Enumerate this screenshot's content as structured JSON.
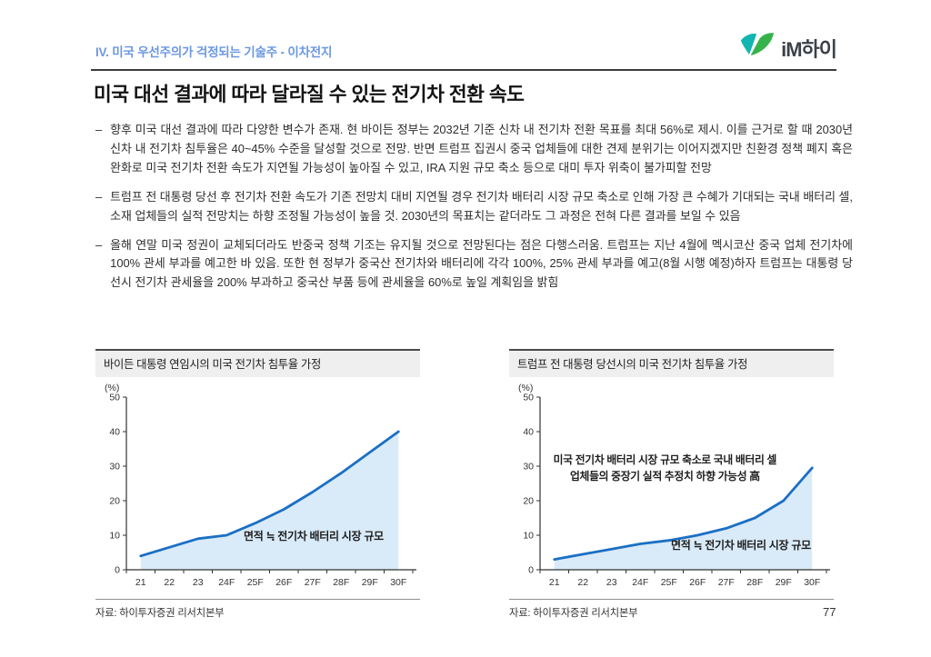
{
  "header": {
    "section_title": "IV. 미국 우선주의가 걱정되는 기술주 - 이차전지",
    "logo_text": "iM하이"
  },
  "page_title": "미국 대선 결과에 따라 달라질 수 있는 전기차 전환 속도",
  "bullets": [
    {
      "dash": "–",
      "text": "향후 미국 대선 결과에 따라 다양한 변수가 존재. 현 바이든 정부는 2032년 기준 신차 내 전기차 전환 목표를 최대 56%로 제시. 이를 근거로 할 때 2030년 신차 내 전기차 침투율은 40~45% 수준을 달성할 것으로 전망. 반면 트럼프 집권시 중국 업체들에 대한 견제 분위기는 이어지겠지만 친환경 정책 폐지 혹은 완화로 미국 전기차 전환 속도가 지연될 가능성이 높아질 수 있고, IRA 지원 규모 축소 등으로 대미 투자 위축이 불가피할 전망"
    },
    {
      "dash": "–",
      "text": "트럼프 전 대통령 당선 후 전기차 전환 속도가 기존 전망치 대비 지연될 경우 전기차 배터리 시장 규모 축소로 인해 가장 큰 수혜가 기대되는 국내 배터리 셀, 소재 업체들의 실적 전망치는 하향 조정될 가능성이 높을 것. 2030년의 목표치는 같더라도 그 과정은 전혀 다른 결과를 보일 수 있음"
    },
    {
      "dash": "–",
      "text": "올해 연말 미국 정권이 교체되더라도 반중국 정책 기조는 유지될 것으로 전망된다는 점은 다행스러움. 트럼프는 지난 4월에 멕시코산 중국 업체 전기차에 100% 관세 부과를 예고한 바 있음. 또한 현 정부가 중국산 전기차와 배터리에 각각 100%, 25% 관세 부과를 예고(8월 시행 예정)하자 트럼프는 대통령 당선시 전기차 관세율을 200% 부과하고 중국산 부품 등에 관세율을 60%로 높일 계획임을 밝힘"
    }
  ],
  "chart_data": [
    {
      "type": "area",
      "title": "바이든 대통령 연임시의 미국 전기차 침투율 가정",
      "unit_label": "(%)",
      "categories": [
        "21",
        "22",
        "23",
        "24F",
        "25F",
        "26F",
        "27F",
        "28F",
        "29F",
        "30F"
      ],
      "values": [
        4,
        6.5,
        9,
        10,
        13.5,
        17.5,
        22.5,
        28,
        34,
        40
      ],
      "ylim": [
        0,
        50
      ],
      "yticks": [
        0,
        10,
        20,
        30,
        40,
        50
      ],
      "annotation": "면적 ≒ 전기차 배터리 시장 규모",
      "source": "자료: 하이투자증권 리서치본부",
      "line_color": "#1b6fc4",
      "fill_color": "#d9eaf8"
    },
    {
      "type": "area",
      "title": "트럼프 전 대통령 당선시의 미국 전기차 침투율 가정",
      "unit_label": "(%)",
      "categories": [
        "21",
        "22",
        "23",
        "24F",
        "25F",
        "26F",
        "27F",
        "28F",
        "29F",
        "30F"
      ],
      "values": [
        3,
        4.5,
        6,
        7.5,
        8.5,
        10,
        12,
        15,
        20,
        29.5
      ],
      "ylim": [
        0,
        50
      ],
      "yticks": [
        0,
        10,
        20,
        30,
        40,
        50
      ],
      "note_lines": [
        "미국 전기차 배터리 시장 규모 축소로 국내 배터리 셀",
        "업체들의 중장기 실적 추정치 하향 가능성 高"
      ],
      "annotation": "면적 ≒ 전기차 배터리 시장 규모",
      "source": "자료: 하이투자증권 리서치본부",
      "line_color": "#1b6fc4",
      "fill_color": "#d9eaf8"
    }
  ],
  "page_number": "77",
  "colors": {
    "section_blue": "#6b97e3",
    "rule_dark": "#3b3b3b",
    "chart_line": "#1b6fc4",
    "chart_fill": "#d9eaf8",
    "logo_teal": "#13b5b1",
    "logo_green": "#35b34a"
  }
}
